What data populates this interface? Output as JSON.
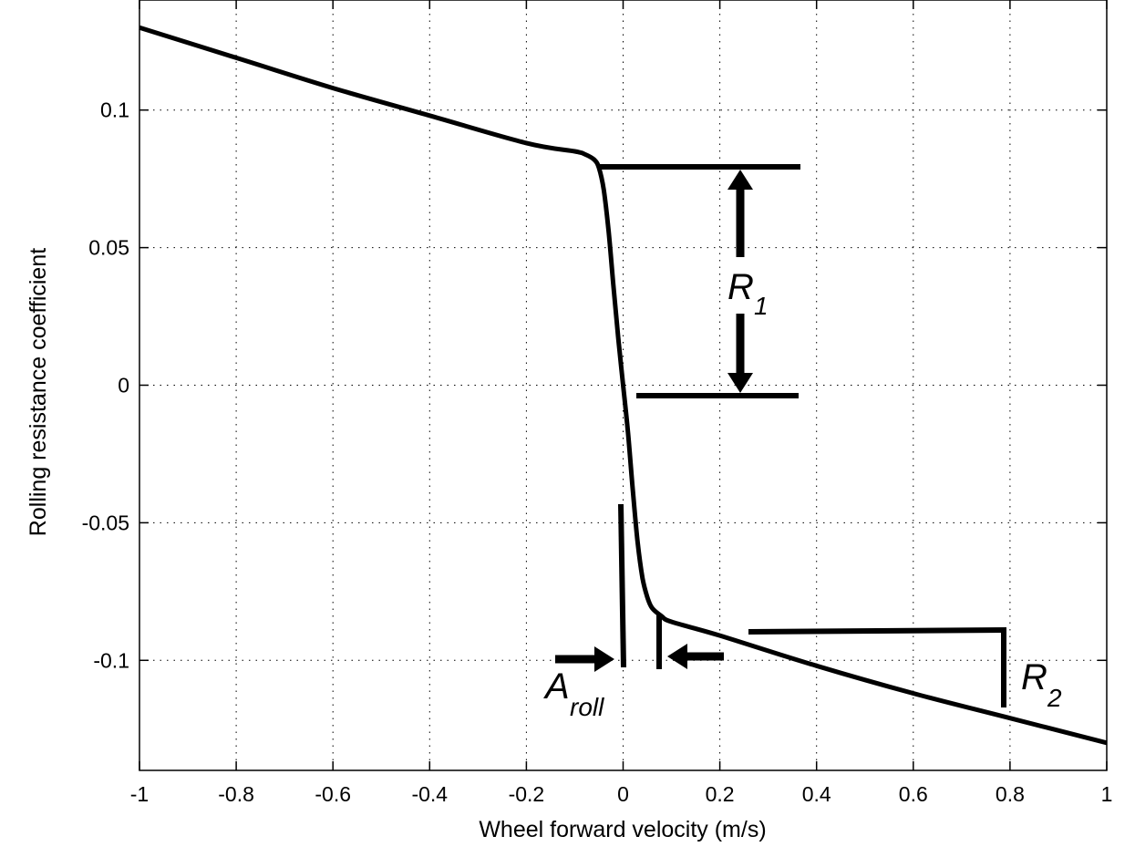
{
  "chart_data": {
    "type": "line",
    "title": "",
    "xlabel": "Wheel forward velocity (m/s)",
    "ylabel": "Rolling resistance coefficient",
    "xlim": [
      -1,
      1
    ],
    "ylim": [
      -0.14,
      0.14
    ],
    "grid": true,
    "x_ticks": [
      -1,
      -0.8,
      -0.6,
      -0.4,
      -0.2,
      0,
      0.2,
      0.4,
      0.6,
      0.8,
      1
    ],
    "x_tick_labels": [
      "-1",
      "-0.8",
      "-0.6",
      "-0.4",
      "-0.2",
      "0",
      "0.2",
      "0.4",
      "0.6",
      "0.8",
      "1"
    ],
    "y_ticks": [
      -0.1,
      -0.05,
      0,
      0.05,
      0.1
    ],
    "y_tick_labels": [
      "-0.1",
      "-0.05",
      "0",
      "0.05",
      "0.1"
    ],
    "series": [
      {
        "x": [
          -1,
          -0.8,
          -0.6,
          -0.4,
          -0.2,
          -0.1,
          -0.08,
          -0.06,
          -0.05,
          -0.04,
          -0.03,
          -0.02,
          -0.01,
          0,
          0.01,
          0.02,
          0.03,
          0.04,
          0.05,
          0.06,
          0.08,
          0.1,
          0.2,
          0.4,
          0.6,
          0.8,
          1
        ],
        "y": [
          0.13,
          0.119,
          0.108,
          0.098,
          0.088,
          0.085,
          0.084,
          0.082,
          0.079,
          0.071,
          0.056,
          0.036,
          0.017,
          0,
          -0.017,
          -0.038,
          -0.057,
          -0.07,
          -0.077,
          -0.081,
          -0.084,
          -0.086,
          -0.091,
          -0.102,
          -0.112,
          -0.121,
          -0.13
        ]
      }
    ],
    "annotations": [
      {
        "label": "R",
        "subscript": "1"
      },
      {
        "label": "R",
        "subscript": "2"
      },
      {
        "label": "A",
        "subscript": "roll"
      }
    ]
  }
}
